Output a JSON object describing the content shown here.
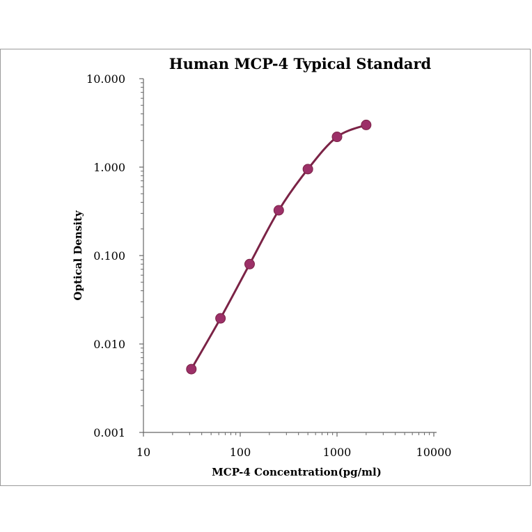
{
  "chart_data": {
    "type": "line",
    "title": "Human  MCP-4 Typical Standard",
    "xlabel": "MCP-4  Concentration(pg/ml)",
    "ylabel": "Optical Density",
    "x_scale": "log",
    "y_scale": "log",
    "xlim": [
      10,
      10000
    ],
    "ylim": [
      0.001,
      10
    ],
    "x_ticks": [
      10,
      100,
      1000,
      10000
    ],
    "x_tick_labels": [
      "10",
      "100",
      "1000",
      "10000"
    ],
    "y_ticks": [
      0.001,
      0.01,
      0.1,
      1,
      10
    ],
    "y_tick_labels": [
      "0.001",
      "0.010",
      "0.100",
      "1.000",
      "10.000"
    ],
    "grid": false,
    "legend": "none",
    "series": [
      {
        "color": "#7b2346",
        "marker_color": "#9c3068",
        "smooth": true,
        "x": [
          31.25,
          62.5,
          125,
          250,
          500,
          1000,
          2000
        ],
        "y": [
          0.0052,
          0.0195,
          0.08,
          0.325,
          0.95,
          2.2,
          3.0
        ]
      }
    ]
  }
}
